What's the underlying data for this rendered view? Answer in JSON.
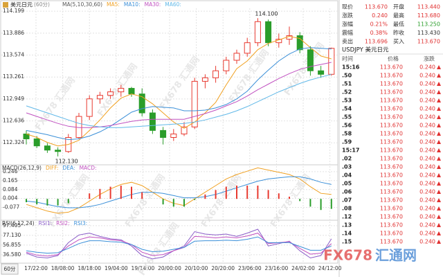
{
  "chart_data": [
    {
      "type": "candlestick",
      "title": "美元日元",
      "subtitle": "(60分)",
      "legend_title": "MA(5,10,30,60)",
      "up_color": "#e8392f",
      "down_color": "#2a9d2a",
      "open": [
        112.45,
        112.38,
        112.28,
        112.22,
        112.2,
        112.4,
        112.7,
        112.95,
        113.0,
        113.05,
        113.1,
        113.02,
        112.75,
        112.5,
        112.4,
        112.45,
        112.55,
        113.2,
        113.25,
        113.35,
        113.5,
        113.6,
        113.75,
        114.05,
        113.75,
        113.8,
        113.85,
        113.65,
        113.35,
        113.3
      ],
      "high": [
        112.5,
        112.42,
        112.32,
        112.26,
        112.45,
        112.75,
        113.0,
        113.05,
        113.1,
        113.15,
        113.12,
        113.1,
        112.8,
        112.55,
        112.52,
        112.62,
        113.25,
        113.3,
        113.42,
        113.55,
        113.65,
        113.82,
        114.1,
        114.08,
        113.88,
        113.98,
        113.9,
        113.7,
        113.42,
        113.68
      ],
      "low": [
        112.3,
        112.25,
        112.18,
        112.13,
        112.18,
        112.38,
        112.65,
        112.88,
        112.95,
        112.98,
        112.98,
        112.7,
        112.45,
        112.3,
        112.35,
        112.42,
        112.52,
        113.1,
        113.18,
        113.3,
        113.45,
        113.55,
        113.7,
        113.7,
        113.68,
        113.72,
        113.6,
        113.28,
        113.25,
        113.28
      ],
      "close": [
        112.38,
        112.28,
        112.22,
        112.2,
        112.4,
        112.7,
        112.95,
        113.0,
        113.05,
        113.1,
        113.02,
        112.75,
        112.5,
        112.4,
        112.45,
        112.55,
        113.2,
        113.25,
        113.35,
        113.5,
        113.6,
        113.75,
        114.05,
        113.75,
        113.8,
        113.85,
        113.65,
        113.35,
        113.3,
        113.67
      ],
      "series": [
        {
          "name": "MA5:",
          "color": "#f0a020",
          "values": [
            112.45,
            112.4,
            112.33,
            112.28,
            112.3,
            112.36,
            112.5,
            112.65,
            112.82,
            112.96,
            113.02,
            112.98,
            112.88,
            112.75,
            112.62,
            112.53,
            112.62,
            112.75,
            112.9,
            113.15,
            113.38,
            113.49,
            113.65,
            113.74,
            113.79,
            113.84,
            113.81,
            113.68,
            113.56,
            113.52
          ]
        },
        {
          "name": "MA10:",
          "color": "#3a8fd8",
          "values": [
            112.5,
            112.47,
            112.44,
            112.4,
            112.37,
            112.38,
            112.42,
            112.48,
            112.56,
            112.66,
            112.76,
            112.81,
            112.84,
            112.83,
            112.82,
            112.78,
            112.78,
            112.79,
            112.82,
            112.87,
            112.95,
            113.06,
            113.22,
            113.36,
            113.49,
            113.59,
            113.66,
            113.68,
            113.67,
            113.66
          ]
        },
        {
          "name": "MA30:",
          "color": "#c050c0",
          "values": [
            112.75,
            112.7,
            112.65,
            112.6,
            112.56,
            112.54,
            112.54,
            112.55,
            112.57,
            112.6,
            112.63,
            112.65,
            112.66,
            112.66,
            112.66,
            112.66,
            112.7,
            112.74,
            112.79,
            112.85,
            112.91,
            112.99,
            113.08,
            113.16,
            113.24,
            113.31,
            113.37,
            113.41,
            113.44,
            113.47
          ]
        },
        {
          "name": "MA60:",
          "color": "#60b8e8",
          "values": [
            112.85,
            112.8,
            112.75,
            112.7,
            112.65,
            112.6,
            112.57,
            112.55,
            112.54,
            112.54,
            112.55,
            112.56,
            112.57,
            112.58,
            112.59,
            112.6,
            112.62,
            112.65,
            112.69,
            112.73,
            112.78,
            112.84,
            112.91,
            112.98,
            113.05,
            113.11,
            113.17,
            113.22,
            113.26,
            113.3
          ]
        }
      ],
      "annotations": [
        {
          "value": 114.1,
          "label": "114.100"
        },
        {
          "value": 112.13,
          "label": "112.130"
        }
      ],
      "ylim": [
        112.04,
        114.24
      ],
      "yticks": [
        114.199,
        113.886,
        113.574,
        113.261,
        112.949,
        112.636,
        112.324
      ],
      "grid": true
    },
    {
      "type": "macd",
      "title": "MACD(26,12,9)",
      "up_color": "#e8392f",
      "down_color": "#2a9d2a",
      "series": [
        {
          "name": "DIFF:",
          "color": "#f0a020",
          "values": [
            -0.05,
            -0.08,
            -0.11,
            -0.13,
            -0.12,
            -0.08,
            -0.02,
            0.04,
            0.09,
            0.13,
            0.15,
            0.12,
            0.06,
            0.0,
            -0.04,
            -0.06,
            0.0,
            0.06,
            0.12,
            0.18,
            0.22,
            0.25,
            0.28,
            0.26,
            0.24,
            0.22,
            0.18,
            0.11,
            0.05,
            0.04
          ]
        },
        {
          "name": "DEA:",
          "color": "#3a8fd8",
          "values": [
            -0.02,
            -0.03,
            -0.05,
            -0.07,
            -0.08,
            -0.08,
            -0.07,
            -0.05,
            -0.02,
            0.01,
            0.04,
            0.06,
            0.06,
            0.05,
            0.03,
            0.01,
            0.01,
            0.02,
            0.04,
            0.07,
            0.1,
            0.13,
            0.16,
            0.18,
            0.19,
            0.2,
            0.2,
            0.18,
            0.15,
            0.13
          ]
        },
        {
          "name": "MACD:",
          "type": "bar",
          "color": "#c050c0",
          "values": [
            -0.03,
            -0.05,
            -0.06,
            -0.06,
            -0.04,
            0.0,
            0.05,
            0.09,
            0.11,
            0.12,
            0.11,
            0.06,
            0.0,
            -0.05,
            -0.07,
            -0.07,
            -0.01,
            0.04,
            0.08,
            0.11,
            0.12,
            0.12,
            0.12,
            0.08,
            0.05,
            0.02,
            -0.02,
            -0.07,
            -0.1,
            -0.09
          ]
        }
      ],
      "ylim": [
        -0.18,
        0.295
      ],
      "yticks": [
        0.246,
        0.165,
        0.084,
        0.004,
        -0.077
      ],
      "grid": true
    },
    {
      "type": "line",
      "title": "RSI(6,12,24)",
      "series": [
        {
          "name": "RSI1:",
          "color": "#8a5cc8",
          "values": [
            40,
            32,
            30,
            35,
            62,
            78,
            82,
            75,
            70,
            68,
            55,
            35,
            28,
            32,
            45,
            55,
            85,
            80,
            78,
            80,
            75,
            82,
            90,
            55,
            60,
            65,
            45,
            30,
            35,
            70
          ]
        },
        {
          "name": "RSI2:",
          "color": "#c050c0",
          "values": [
            42,
            36,
            34,
            37,
            55,
            68,
            74,
            72,
            68,
            66,
            58,
            42,
            35,
            37,
            45,
            52,
            75,
            74,
            72,
            74,
            72,
            76,
            82,
            60,
            62,
            64,
            50,
            38,
            40,
            60
          ]
        },
        {
          "name": "RSI3:",
          "color": "#3a8fd8",
          "values": [
            45,
            42,
            40,
            41,
            50,
            60,
            66,
            66,
            64,
            63,
            58,
            48,
            43,
            44,
            48,
            52,
            65,
            66,
            66,
            67,
            66,
            69,
            74,
            62,
            62,
            62,
            54,
            46,
            46,
            55
          ]
        }
      ],
      "ylim": [
        22,
        106
      ],
      "yticks": [
        97.405,
        {
          "value": 77.13,
          "label": "77.130"
        },
        56.855,
        {
          "value": 36.58,
          "label": "36.580"
        }
      ],
      "grid": true
    }
  ],
  "time_labels": [
    "17/22:00",
    "18/08:00",
    "18/18:00",
    "19/04:00",
    "19/14:00",
    "20/00:00",
    "20/10:00",
    "20/20:00",
    "23/06:00",
    "23/16:00",
    "24/02:00",
    "24/12:00"
  ],
  "period_button": "60分",
  "watermark": "FX678 汇通网",
  "logo": {
    "brand": "FX678",
    "name": "汇通网"
  },
  "quote": {
    "rows": [
      [
        "现价",
        "113.670",
        "开盘",
        "113.440"
      ],
      [
        "涨跌",
        "0.240",
        "最高",
        "113.680"
      ],
      [
        "涨幅",
        "0.21%",
        "最低",
        "113.250"
      ],
      [
        "震幅",
        "0.38%",
        "昨收",
        "113.430"
      ],
      [
        "卖出",
        "113.696",
        "买入",
        "113.670"
      ]
    ],
    "colors": [
      [
        "#e03030",
        "#e03030"
      ],
      [
        "#e03030",
        "#e03030"
      ],
      [
        "#e03030",
        "#2a9d2a"
      ],
      [
        "#e03030",
        "#333333"
      ],
      [
        "#e03030",
        "#e03030"
      ]
    ],
    "symbol": "USDJPY 美元日元"
  },
  "trades": {
    "headers": [
      "时间",
      "价格",
      "涨跌"
    ],
    "rows": [
      [
        "15:16",
        "113.670",
        "0.240"
      ],
      [
        ".50",
        "113.670",
        "0.240"
      ],
      [
        ".51",
        "113.670",
        "0.240"
      ],
      [
        ".52",
        "113.670",
        "0.240"
      ],
      [
        ".53",
        "113.670",
        "0.240"
      ],
      [
        ".54",
        "113.670",
        "0.240"
      ],
      [
        ".55",
        "113.670",
        "0.240"
      ],
      [
        ".56",
        "113.670",
        "0.240"
      ],
      [
        ".58",
        "113.670",
        "0.240"
      ],
      [
        ".59",
        "113.670",
        "0.240"
      ],
      [
        "15:17",
        "113.670",
        "0.240"
      ],
      [
        ".02",
        "113.670",
        "0.240"
      ],
      [
        ".03",
        "113.670",
        "0.240"
      ],
      [
        ".04",
        "113.670",
        "0.240"
      ],
      [
        ".05",
        "113.670",
        "0.240"
      ],
      [
        ".06",
        "113.670",
        "0.240"
      ],
      [
        ".07",
        "113.670",
        "0.240"
      ],
      [
        ".08",
        "113.670",
        "0.240"
      ],
      [
        ".12",
        "113.670",
        "0.240"
      ],
      [
        ".13",
        "113.670",
        "0.240"
      ],
      [
        ".14",
        "113.670",
        "0.240"
      ],
      [
        ".15",
        "113.670",
        "0.240"
      ]
    ]
  }
}
